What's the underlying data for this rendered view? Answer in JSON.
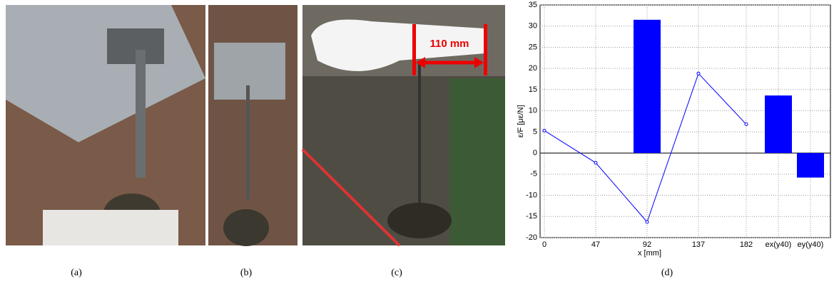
{
  "panels": [
    {
      "caption": "(a)"
    },
    {
      "caption": "(b)"
    },
    {
      "caption": "(c)",
      "annotation": "110 mm"
    },
    {
      "caption": "(d)"
    }
  ],
  "chart_data": {
    "type": "bar",
    "xlabel": "x [mm]",
    "ylabel": "ε/F [με/N]",
    "categories": [
      "0",
      "47",
      "92",
      "137",
      "182",
      "ex(y40)",
      "ey(y40)"
    ],
    "series": [
      {
        "type": "line",
        "color": "#0000ff",
        "values": [
          5.3,
          -2.3,
          -16.3,
          18.8,
          6.8,
          null,
          null
        ]
      },
      {
        "type": "bar",
        "color": "#0000ff",
        "values": [
          null,
          null,
          31.5,
          null,
          null,
          13.6,
          -5.8
        ]
      }
    ],
    "ylim": [
      -20,
      35
    ],
    "yticks": [
      -20,
      -15,
      -10,
      -5,
      0,
      5,
      10,
      15,
      20,
      25,
      30,
      35
    ],
    "grid": true
  }
}
